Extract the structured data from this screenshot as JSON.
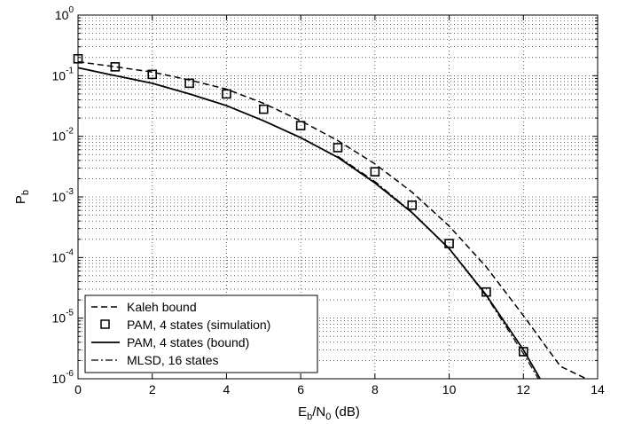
{
  "chart_data": {
    "type": "line",
    "xlabel": {
      "main": "E",
      "sub1": "b",
      "mid": "/N",
      "sub2": "0",
      "tail": " (dB)"
    },
    "ylabel": {
      "main": "P",
      "sub": "b"
    },
    "xlim": [
      0,
      14
    ],
    "ylim": [
      1e-06,
      1
    ],
    "yscale": "log",
    "grid": true,
    "legend_position": "bottom-left",
    "x_ticks": [
      "0",
      "2",
      "4",
      "6",
      "8",
      "10",
      "12",
      "14"
    ],
    "y_ticks": [
      {
        "base": "10",
        "exp": "0"
      },
      {
        "base": "10",
        "exp": "-1"
      },
      {
        "base": "10",
        "exp": "-2"
      },
      {
        "base": "10",
        "exp": "-3"
      },
      {
        "base": "10",
        "exp": "-4"
      },
      {
        "base": "10",
        "exp": "-5"
      },
      {
        "base": "10",
        "exp": "-6"
      }
    ],
    "series": [
      {
        "name": "Kaleh bound",
        "style": "dashed",
        "x": [
          0,
          1,
          2,
          3,
          4,
          5,
          6,
          7,
          8,
          9,
          10,
          11,
          12,
          13,
          13.7
        ],
        "y": [
          0.17,
          0.14,
          0.115,
          0.085,
          0.06,
          0.035,
          0.018,
          0.0085,
          0.0035,
          0.0012,
          0.00033,
          7e-05,
          1.1e-05,
          1.6e-06,
          1e-06
        ]
      },
      {
        "name": "PAM, 4 states (simulation)",
        "style": "markers",
        "x": [
          0,
          1,
          2,
          3,
          4,
          5,
          6,
          7,
          8,
          9,
          10,
          11,
          12
        ],
        "y": [
          0.19,
          0.14,
          0.105,
          0.075,
          0.05,
          0.028,
          0.015,
          0.0065,
          0.0026,
          0.00073,
          0.00017,
          2.7e-05,
          2.8e-06
        ]
      },
      {
        "name": "PAM, 4 states (bound)",
        "style": "solid",
        "x": [
          0,
          1,
          2,
          3,
          4,
          5,
          6,
          7,
          8,
          9,
          10,
          11,
          12,
          12.45
        ],
        "y": [
          0.135,
          0.1,
          0.075,
          0.05,
          0.032,
          0.018,
          0.0095,
          0.0045,
          0.0017,
          0.00055,
          0.00014,
          2.4e-05,
          3e-06,
          1e-06
        ]
      },
      {
        "name": "MLSD, 16 states",
        "style": "dashdot",
        "x": [
          7,
          8,
          9,
          10,
          11,
          12,
          12.4
        ],
        "y": [
          0.0047,
          0.0018,
          0.00056,
          0.00014,
          2.3e-05,
          2.6e-06,
          1e-06
        ]
      }
    ]
  }
}
